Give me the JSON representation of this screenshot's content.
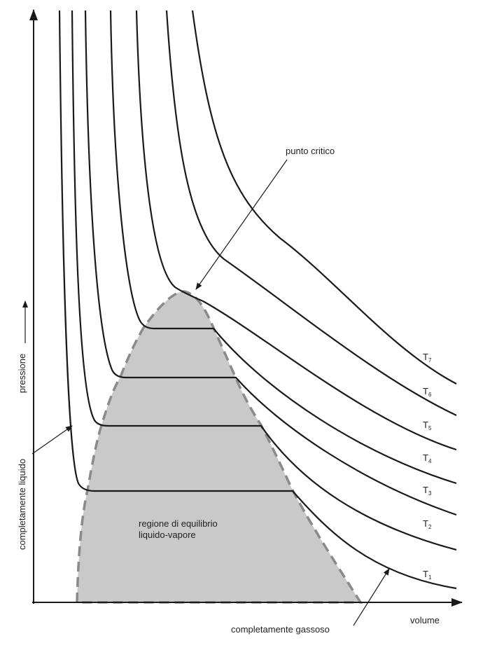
{
  "labels": {
    "critical_point": "punto critico",
    "pressure": "pressione",
    "liquid": "completamente liquido",
    "region_line1": "regione di equilibrio",
    "region_line2": "liquido-vapore",
    "volume": "volume",
    "gas": "completamente gassoso"
  },
  "isotherms": [
    {
      "letter": "T",
      "index": "1"
    },
    {
      "letter": "T",
      "index": "2"
    },
    {
      "letter": "T",
      "index": "3"
    },
    {
      "letter": "T",
      "index": "4"
    },
    {
      "letter": "T",
      "index": "5"
    },
    {
      "letter": "T",
      "index": "6"
    },
    {
      "letter": "T",
      "index": "7"
    }
  ]
}
